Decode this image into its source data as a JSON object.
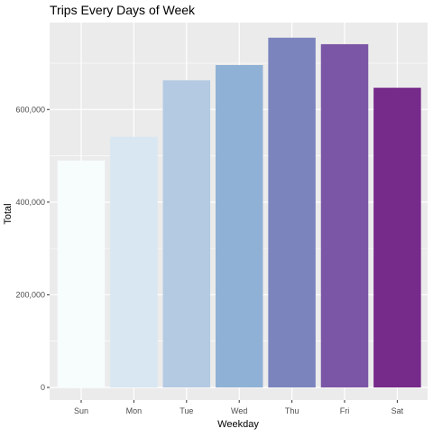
{
  "chart_data": {
    "type": "bar",
    "title": "Trips Every Days of Week",
    "xlabel": "Weekday",
    "ylabel": "Total",
    "categories": [
      "Sun",
      "Mon",
      "Tue",
      "Wed",
      "Thu",
      "Fri",
      "Sat"
    ],
    "values": [
      490000,
      541000,
      663000,
      696000,
      755000,
      741000,
      647000
    ],
    "colors": [
      "#F7FCFD",
      "#D8E7F1",
      "#B3CAE2",
      "#8FB1D5",
      "#7B84BD",
      "#7B56A6",
      "#762A8A"
    ],
    "yticks": [
      0,
      200000,
      400000,
      600000
    ],
    "ytick_labels": [
      "0",
      "200,000",
      "400,000",
      "600,000"
    ],
    "ylim": [
      0,
      775000
    ],
    "grid": true,
    "legend": "none",
    "panel_background": "#EBEBEB",
    "grid_color": "#FFFFFF"
  }
}
